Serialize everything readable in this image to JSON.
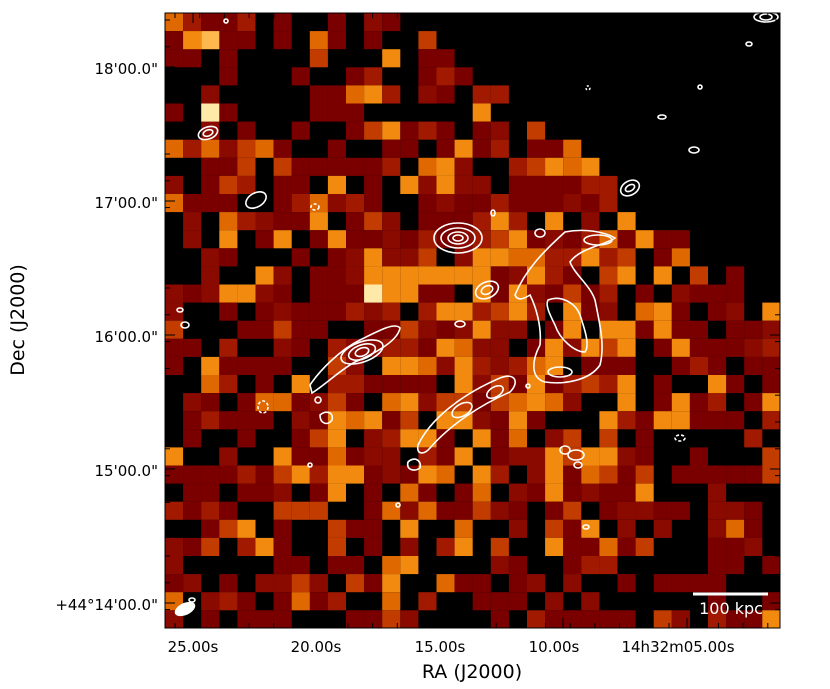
{
  "axes": {
    "xlabel": "RA (J2000)",
    "ylabel": "Dec (J2000)",
    "xticks": [
      "25.00s",
      "20.00s",
      "15.00s",
      "10.00s",
      "14h32m05.00s"
    ],
    "yticks": [
      "18'00.0\"",
      "17'00.0\"",
      "16'00.0\"",
      "15'00.0\"",
      "+44°14'00.0\""
    ]
  },
  "scalebar": {
    "label": "100 kpc"
  },
  "image": {
    "colormap": "afmhot",
    "background": "#000000",
    "contour_color": "#ffffff"
  }
}
